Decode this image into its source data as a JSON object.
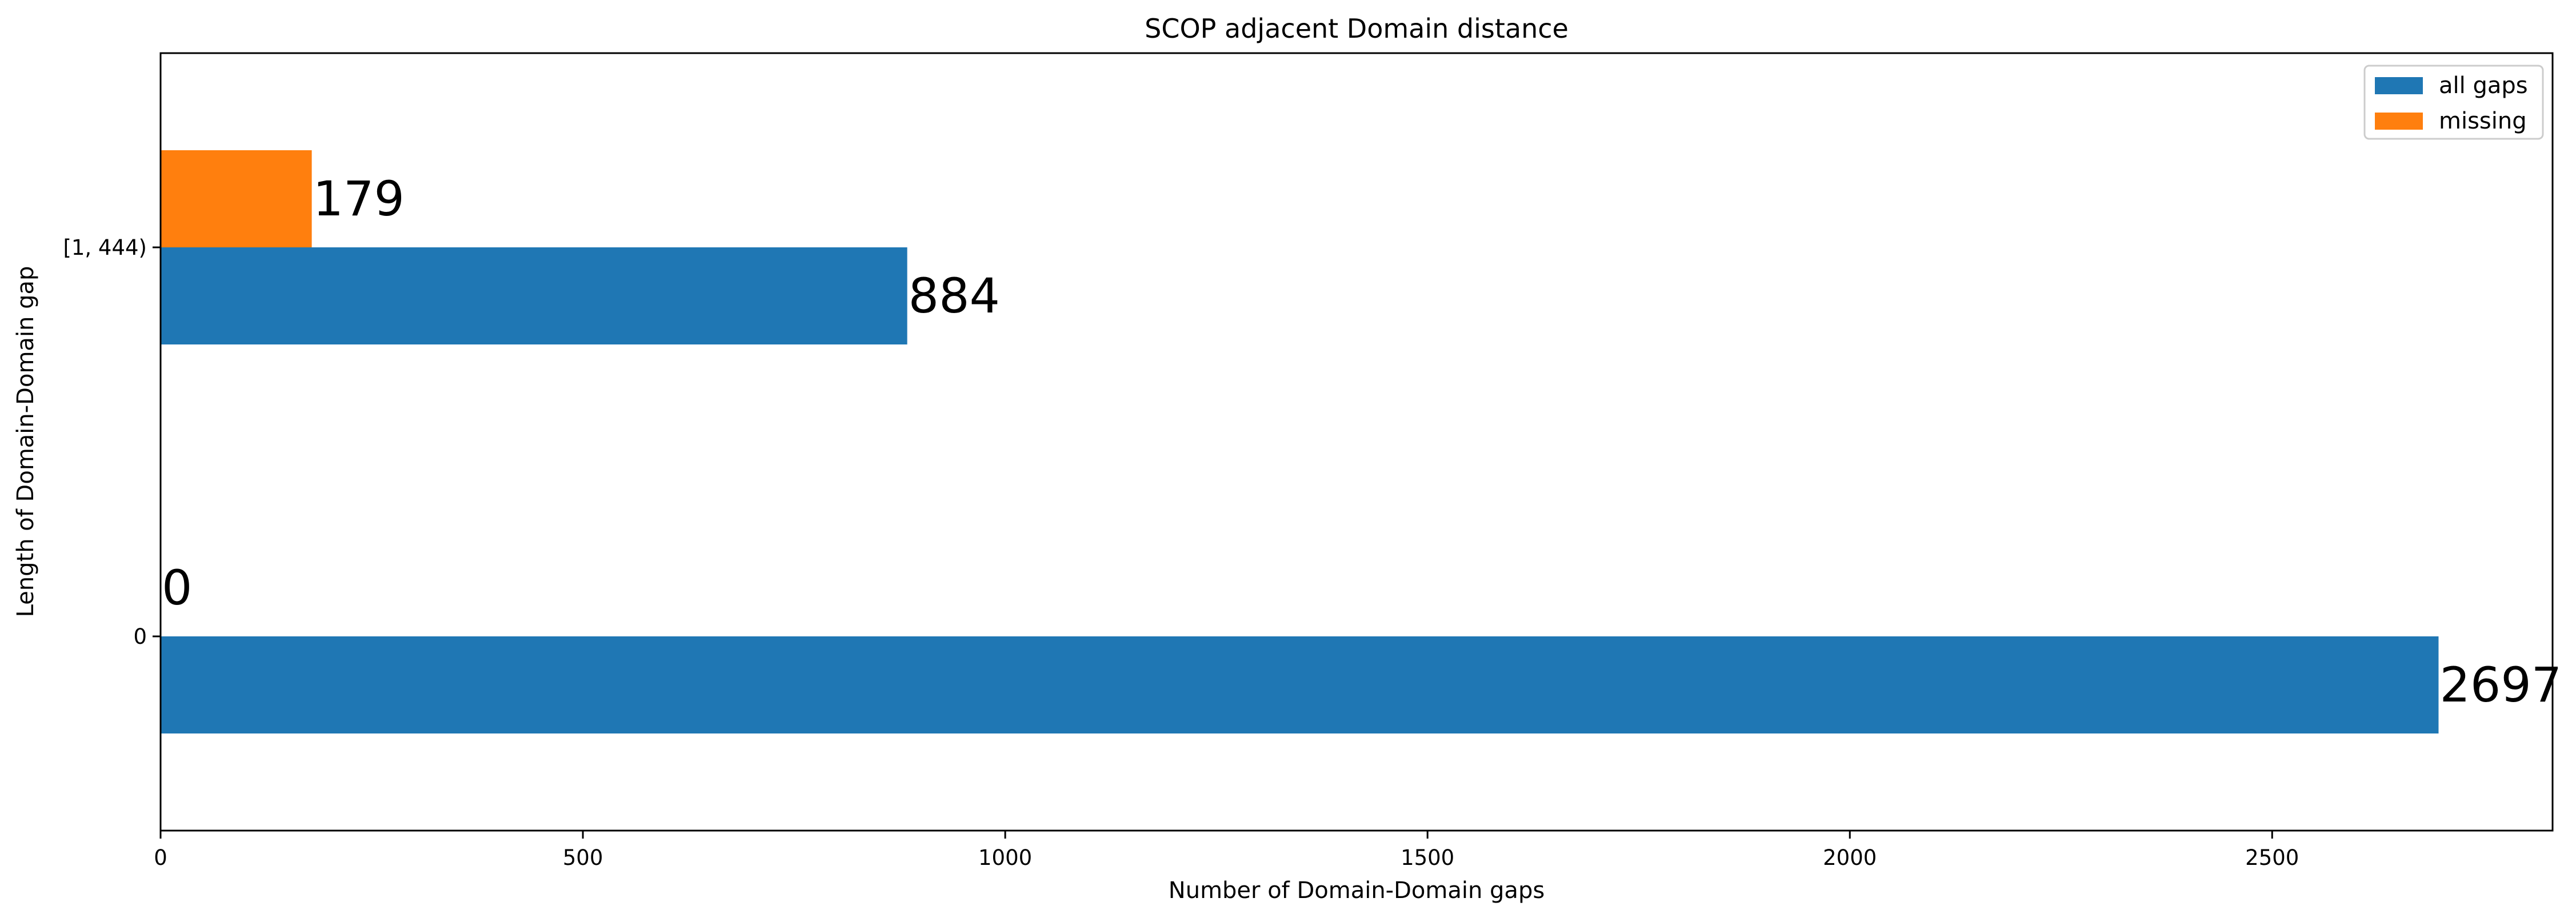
{
  "chart_data": {
    "type": "bar",
    "orientation": "horizontal",
    "title": "SCOP adjacent Domain distance",
    "xlabel": "Number of Domain-Domain gaps",
    "ylabel": "Length of Domain-Domain gap",
    "categories": [
      "0",
      "[1, 444)"
    ],
    "series": [
      {
        "name": "all gaps",
        "color": "#1f77b4",
        "values": [
          2697,
          884
        ]
      },
      {
        "name": "missing",
        "color": "#ff7f0e",
        "values": [
          0,
          179
        ]
      }
    ],
    "data_labels": [
      {
        "series": 0,
        "category": 0,
        "text": "2697"
      },
      {
        "series": 0,
        "category": 1,
        "text": "884"
      },
      {
        "series": 1,
        "category": 0,
        "text": "0"
      },
      {
        "series": 1,
        "category": 1,
        "text": "179"
      }
    ],
    "xlim": [
      0,
      2832
    ],
    "xticks": [
      0,
      500,
      1000,
      1500,
      2000,
      2500
    ],
    "xtick_labels": [
      "0",
      "500",
      "1000",
      "1500",
      "2000",
      "2500"
    ],
    "grid": false,
    "legend_position": "upper right"
  }
}
